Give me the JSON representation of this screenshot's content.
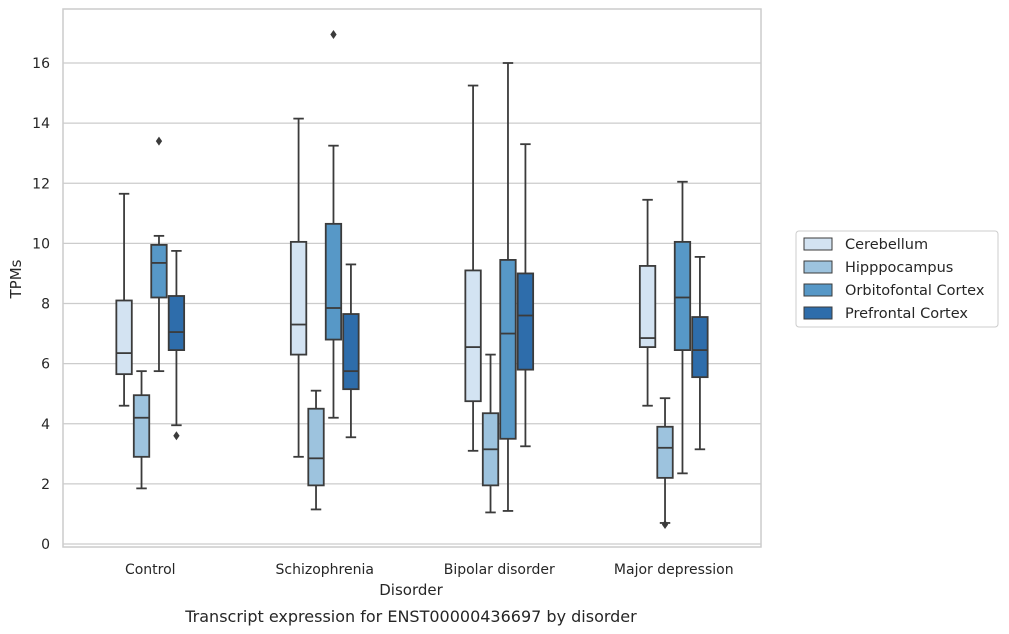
{
  "chart_data": {
    "type": "boxplot",
    "xlabel": "Disorder",
    "ylabel": "TPMs",
    "caption": "Transcript expression for ENST00000436697 by disorder",
    "ylim": [
      -0.2,
      17.8
    ],
    "yticks": [
      0,
      2,
      4,
      6,
      8,
      10,
      12,
      14,
      16
    ],
    "grid": "horizontal",
    "legend_position": "right-outside",
    "categories": [
      "Control",
      "Schizophrenia",
      "Bipolar disorder",
      "Major depression"
    ],
    "series": [
      {
        "name": "Cerebellum",
        "color": "#d3e3f2",
        "boxes": [
          {
            "whislo": 4.6,
            "q1": 5.65,
            "med": 6.35,
            "q3": 8.1,
            "whishi": 11.65,
            "fliers": []
          },
          {
            "whislo": 2.9,
            "q1": 6.3,
            "med": 7.3,
            "q3": 10.05,
            "whishi": 14.15,
            "fliers": []
          },
          {
            "whislo": 3.1,
            "q1": 4.75,
            "med": 6.55,
            "q3": 9.1,
            "whishi": 15.25,
            "fliers": []
          },
          {
            "whislo": 4.6,
            "q1": 6.55,
            "med": 6.85,
            "q3": 9.25,
            "whishi": 11.45,
            "fliers": []
          }
        ]
      },
      {
        "name": "Hipppocampus",
        "color": "#9dc3de",
        "boxes": [
          {
            "whislo": 1.85,
            "q1": 2.9,
            "med": 4.2,
            "q3": 4.95,
            "whishi": 5.75,
            "fliers": []
          },
          {
            "whislo": 1.15,
            "q1": 1.95,
            "med": 2.85,
            "q3": 4.5,
            "whishi": 5.1,
            "fliers": []
          },
          {
            "whislo": 1.05,
            "q1": 1.95,
            "med": 3.15,
            "q3": 4.35,
            "whishi": 6.3,
            "fliers": []
          },
          {
            "whislo": 0.7,
            "q1": 2.2,
            "med": 3.2,
            "q3": 3.9,
            "whishi": 4.85,
            "fliers": [
              0.65
            ]
          }
        ]
      },
      {
        "name": "Orbitofontal Cortex",
        "color": "#5798c7",
        "boxes": [
          {
            "whislo": 5.75,
            "q1": 8.2,
            "med": 9.35,
            "q3": 9.95,
            "whishi": 10.25,
            "fliers": [
              13.4
            ]
          },
          {
            "whislo": 4.2,
            "q1": 6.8,
            "med": 7.85,
            "q3": 10.65,
            "whishi": 13.25,
            "fliers": [
              16.95
            ]
          },
          {
            "whislo": 1.1,
            "q1": 3.5,
            "med": 7.0,
            "q3": 9.45,
            "whishi": 16.0,
            "fliers": []
          },
          {
            "whislo": 2.35,
            "q1": 6.45,
            "med": 8.2,
            "q3": 10.05,
            "whishi": 12.05,
            "fliers": []
          }
        ]
      },
      {
        "name": "Prefrontal Cortex",
        "color": "#2e6dab",
        "boxes": [
          {
            "whislo": 3.95,
            "q1": 6.45,
            "med": 7.05,
            "q3": 8.25,
            "whishi": 9.75,
            "fliers": [
              3.6
            ]
          },
          {
            "whislo": 3.55,
            "q1": 5.15,
            "med": 5.75,
            "q3": 7.65,
            "whishi": 9.3,
            "fliers": []
          },
          {
            "whislo": 3.25,
            "q1": 5.8,
            "med": 7.6,
            "q3": 9.0,
            "whishi": 13.3,
            "fliers": []
          },
          {
            "whislo": 3.15,
            "q1": 5.55,
            "med": 6.45,
            "q3": 7.55,
            "whishi": 9.55,
            "fliers": []
          }
        ]
      }
    ]
  }
}
